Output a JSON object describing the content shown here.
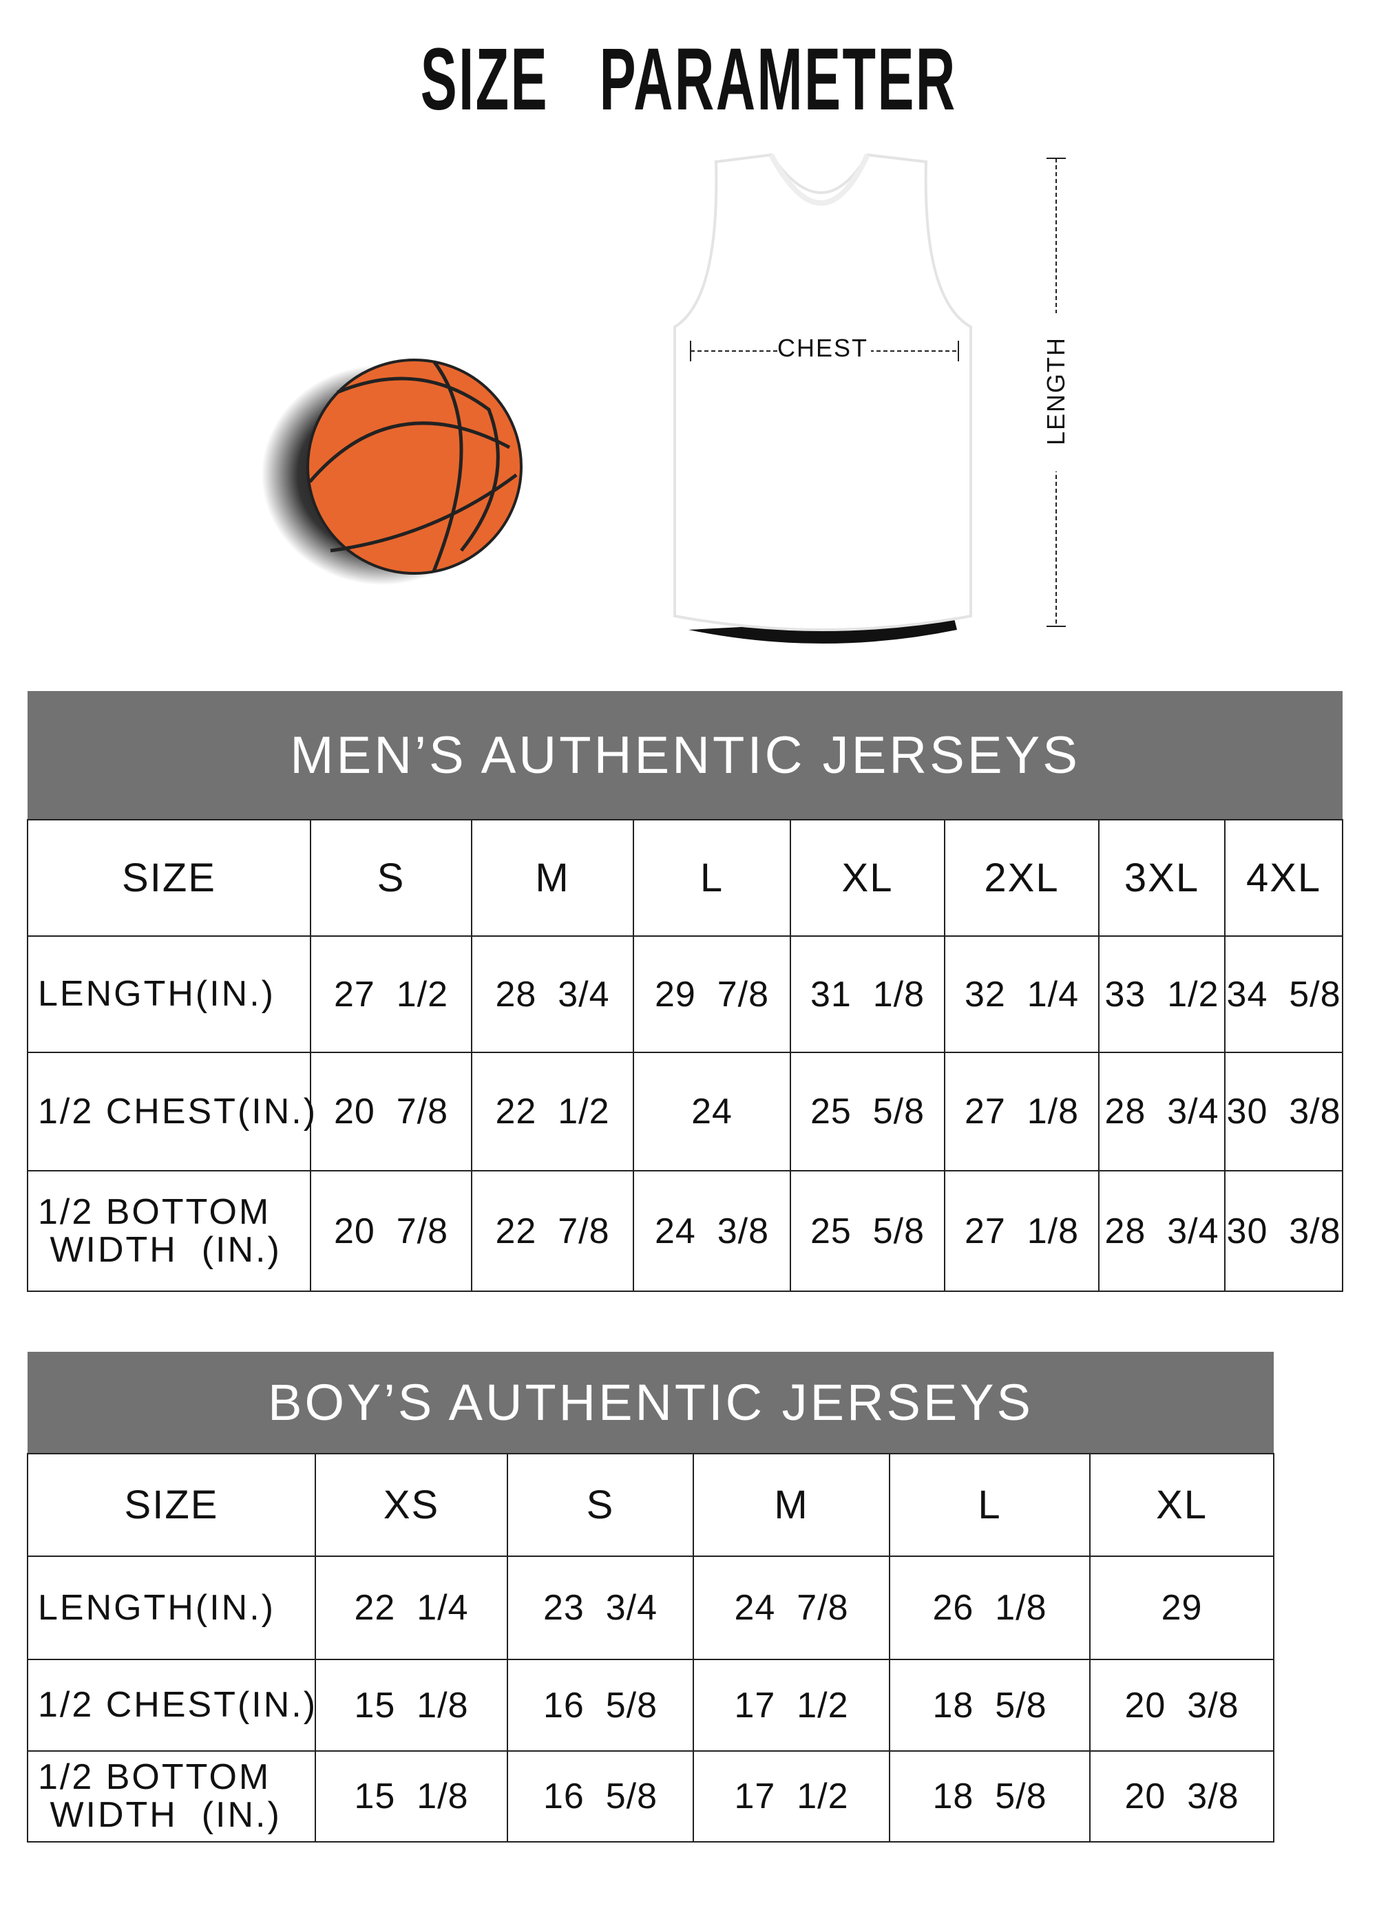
{
  "title": "SIZE   PARAMETER",
  "diagram": {
    "chest_label": "CHEST",
    "length_label": "LENGTH",
    "ball_color": "#E8672E"
  },
  "men": {
    "heading": "MEN’S AUTHENTIC JERSEYS",
    "size_label": "SIZE",
    "sizes": [
      "S",
      "M",
      "L",
      "XL",
      "2XL",
      "3XL",
      "4XL"
    ],
    "rows": [
      {
        "label": "LENGTH(IN.)",
        "values": [
          "27  1/2",
          "28  3/4",
          "29  7/8",
          "31  1/8",
          "32  1/4",
          "33  1/2",
          "34  5/8"
        ]
      },
      {
        "label": "1/2 CHEST(IN.)",
        "values": [
          "20  7/8",
          "22  1/2",
          "24",
          "25  5/8",
          "27  1/8",
          "28  3/4",
          "30  3/8"
        ]
      },
      {
        "label": "1/2 BOTTOM\n WIDTH  (IN.)",
        "values": [
          "20  7/8",
          "22  7/8",
          "24  3/8",
          "25  5/8",
          "27  1/8",
          "28  3/4",
          "30  3/8"
        ]
      }
    ]
  },
  "boys": {
    "heading": "BOY’S AUTHENTIC JERSEYS",
    "size_label": "SIZE",
    "sizes": [
      "XS",
      "S",
      "M",
      "L",
      "XL"
    ],
    "rows": [
      {
        "label": "LENGTH(IN.)",
        "values": [
          "22  1/4",
          "23  3/4",
          "24  7/8",
          "26  1/8",
          "29"
        ]
      },
      {
        "label": "1/2 CHEST(IN.)",
        "values": [
          "15  1/8",
          "16  5/8",
          "17  1/2",
          "18  5/8",
          "20  3/8"
        ]
      },
      {
        "label": "1/2 BOTTOM\n WIDTH  (IN.)",
        "values": [
          "15  1/8",
          "16  5/8",
          "17  1/2",
          "18  5/8",
          "20  3/8"
        ]
      }
    ]
  },
  "header_color": "#727272"
}
